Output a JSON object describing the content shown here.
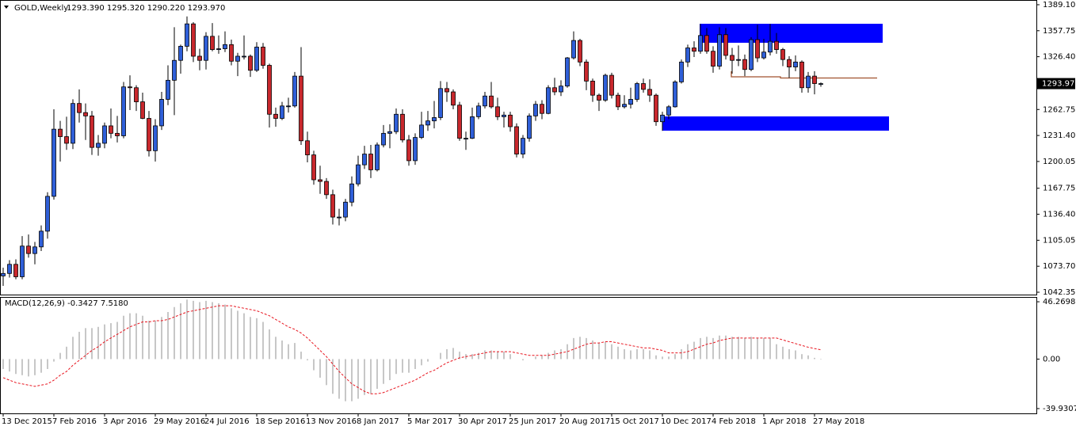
{
  "chart_data": [
    {
      "type": "candlestick",
      "title": "GOLD,Weekly",
      "ohlc_text": "1293.390 1295.320 1290.220 1293.970",
      "categories": [
        "13 Dec 2015",
        null,
        null,
        null,
        null,
        null,
        null,
        null,
        "7 Feb 2016",
        null,
        null,
        null,
        null,
        null,
        null,
        null,
        "3 Apr 2016",
        null,
        null,
        null,
        null,
        null,
        null,
        null,
        "29 May 2016",
        null,
        null,
        null,
        null,
        null,
        null,
        null,
        "24 Jul 2016",
        null,
        null,
        null,
        null,
        null,
        null,
        null,
        "18 Sep 2016",
        null,
        null,
        null,
        null,
        null,
        null,
        null,
        "13 Nov 2016",
        null,
        null,
        null,
        null,
        null,
        null,
        null,
        "8 Jan 2017",
        null,
        null,
        null,
        null,
        null,
        null,
        null,
        "5 Mar 2017",
        null,
        null,
        null,
        null,
        null,
        null,
        null,
        "30 Apr 2017",
        null,
        null,
        null,
        null,
        null,
        null,
        null,
        "25 Jun 2017",
        null,
        null,
        null,
        null,
        null,
        null,
        null,
        "20 Aug 2017",
        null,
        null,
        null,
        null,
        null,
        null,
        null,
        "15 Oct 2017",
        null,
        null,
        null,
        null,
        null,
        null,
        null,
        "10 Dec 2017",
        null,
        null,
        null,
        null,
        null,
        null,
        null,
        "4 Feb 2018",
        null,
        null,
        null,
        null,
        null,
        null,
        null,
        "1 Apr 2018",
        null,
        null,
        null,
        null,
        null,
        null,
        null,
        "27 May 2018",
        null
      ],
      "ohlc": [
        [
          1062,
          1072,
          1050,
          1065
        ],
        [
          1065,
          1081,
          1060,
          1076
        ],
        [
          1076,
          1082,
          1058,
          1061
        ],
        [
          1061,
          1110,
          1058,
          1098
        ],
        [
          1098,
          1112,
          1084,
          1089
        ],
        [
          1089,
          1103,
          1076,
          1097
        ],
        [
          1097,
          1123,
          1092,
          1116
        ],
        [
          1116,
          1163,
          1107,
          1158
        ],
        [
          1158,
          1263,
          1154,
          1239
        ],
        [
          1239,
          1249,
          1200,
          1230
        ],
        [
          1230,
          1254,
          1214,
          1222
        ],
        [
          1222,
          1275,
          1215,
          1270
        ],
        [
          1270,
          1287,
          1247,
          1259
        ],
        [
          1259,
          1270,
          1226,
          1255
        ],
        [
          1255,
          1261,
          1208,
          1217
        ],
        [
          1217,
          1232,
          1207,
          1222
        ],
        [
          1222,
          1247,
          1216,
          1243
        ],
        [
          1243,
          1264,
          1228,
          1234
        ],
        [
          1234,
          1255,
          1223,
          1231
        ],
        [
          1231,
          1296,
          1228,
          1290
        ],
        [
          1290,
          1304,
          1262,
          1289
        ],
        [
          1289,
          1292,
          1261,
          1272
        ],
        [
          1272,
          1283,
          1251,
          1252
        ],
        [
          1252,
          1261,
          1206,
          1213
        ],
        [
          1213,
          1251,
          1200,
          1243
        ],
        [
          1243,
          1284,
          1238,
          1275
        ],
        [
          1275,
          1316,
          1268,
          1298
        ],
        [
          1298,
          1362,
          1256,
          1322
        ],
        [
          1322,
          1341,
          1306,
          1339
        ],
        [
          1339,
          1375,
          1333,
          1366
        ],
        [
          1366,
          1368,
          1320,
          1327
        ],
        [
          1327,
          1336,
          1310,
          1322
        ],
        [
          1322,
          1356,
          1311,
          1351
        ],
        [
          1351,
          1367,
          1333,
          1335
        ],
        [
          1335,
          1352,
          1330,
          1336
        ],
        [
          1336,
          1357,
          1332,
          1341
        ],
        [
          1341,
          1347,
          1316,
          1321
        ],
        [
          1321,
          1331,
          1303,
          1327
        ],
        [
          1327,
          1352,
          1323,
          1327
        ],
        [
          1327,
          1329,
          1302,
          1310
        ],
        [
          1310,
          1344,
          1308,
          1338
        ],
        [
          1338,
          1343,
          1312,
          1316
        ],
        [
          1316,
          1318,
          1241,
          1257
        ],
        [
          1257,
          1265,
          1242,
          1252
        ],
        [
          1252,
          1272,
          1250,
          1267
        ],
        [
          1267,
          1277,
          1259,
          1267
        ],
        [
          1267,
          1308,
          1265,
          1303
        ],
        [
          1303,
          1338,
          1220,
          1225
        ],
        [
          1225,
          1236,
          1199,
          1208
        ],
        [
          1208,
          1213,
          1172,
          1178
        ],
        [
          1178,
          1195,
          1161,
          1176
        ],
        [
          1176,
          1180,
          1155,
          1160
        ],
        [
          1160,
          1166,
          1124,
          1133
        ],
        [
          1133,
          1143,
          1123,
          1133
        ],
        [
          1133,
          1155,
          1128,
          1151
        ],
        [
          1151,
          1182,
          1146,
          1173
        ],
        [
          1173,
          1207,
          1170,
          1196
        ],
        [
          1196,
          1219,
          1191,
          1209
        ],
        [
          1209,
          1220,
          1180,
          1190
        ],
        [
          1190,
          1223,
          1188,
          1220
        ],
        [
          1220,
          1244,
          1217,
          1234
        ],
        [
          1234,
          1245,
          1216,
          1236
        ],
        [
          1236,
          1264,
          1233,
          1257
        ],
        [
          1257,
          1263,
          1223,
          1226
        ],
        [
          1226,
          1232,
          1195,
          1201
        ],
        [
          1201,
          1234,
          1196,
          1229
        ],
        [
          1229,
          1260,
          1227,
          1244
        ],
        [
          1244,
          1261,
          1237,
          1249
        ],
        [
          1249,
          1273,
          1240,
          1253
        ],
        [
          1253,
          1297,
          1250,
          1288
        ],
        [
          1288,
          1296,
          1272,
          1284
        ],
        [
          1284,
          1287,
          1263,
          1268
        ],
        [
          1268,
          1272,
          1225,
          1228
        ],
        [
          1228,
          1236,
          1214,
          1228
        ],
        [
          1228,
          1265,
          1227,
          1254
        ],
        [
          1254,
          1271,
          1251,
          1267
        ],
        [
          1267,
          1284,
          1264,
          1279
        ],
        [
          1279,
          1296,
          1264,
          1266
        ],
        [
          1266,
          1277,
          1250,
          1254
        ],
        [
          1254,
          1260,
          1241,
          1256
        ],
        [
          1256,
          1260,
          1236,
          1242
        ],
        [
          1242,
          1246,
          1205,
          1209
        ],
        [
          1209,
          1232,
          1204,
          1228
        ],
        [
          1228,
          1258,
          1224,
          1255
        ],
        [
          1255,
          1273,
          1249,
          1269
        ],
        [
          1269,
          1274,
          1251,
          1258
        ],
        [
          1258,
          1292,
          1257,
          1289
        ],
        [
          1289,
          1301,
          1280,
          1284
        ],
        [
          1284,
          1298,
          1279,
          1291
        ],
        [
          1291,
          1326,
          1289,
          1325
        ],
        [
          1325,
          1357,
          1323,
          1346
        ],
        [
          1346,
          1348,
          1315,
          1320
        ],
        [
          1320,
          1323,
          1286,
          1297
        ],
        [
          1297,
          1300,
          1272,
          1280
        ],
        [
          1280,
          1282,
          1261,
          1274
        ],
        [
          1274,
          1306,
          1272,
          1304
        ],
        [
          1304,
          1307,
          1276,
          1280
        ],
        [
          1280,
          1283,
          1262,
          1266
        ],
        [
          1266,
          1280,
          1264,
          1269
        ],
        [
          1269,
          1289,
          1264,
          1275
        ],
        [
          1275,
          1296,
          1272,
          1294
        ],
        [
          1294,
          1300,
          1283,
          1287
        ],
        [
          1287,
          1299,
          1272,
          1280
        ],
        [
          1280,
          1282,
          1243,
          1248
        ],
        [
          1248,
          1260,
          1237,
          1256
        ],
        [
          1256,
          1268,
          1251,
          1266
        ],
        [
          1266,
          1298,
          1265,
          1296
        ],
        [
          1296,
          1323,
          1294,
          1320
        ],
        [
          1320,
          1341,
          1314,
          1337
        ],
        [
          1337,
          1345,
          1326,
          1333
        ],
        [
          1333,
          1366,
          1330,
          1352
        ],
        [
          1352,
          1361,
          1330,
          1333
        ],
        [
          1333,
          1339,
          1307,
          1315
        ],
        [
          1315,
          1362,
          1311,
          1353
        ],
        [
          1353,
          1361,
          1323,
          1328
        ],
        [
          1328,
          1337,
          1306,
          1322
        ],
        [
          1322,
          1340,
          1315,
          1323
        ],
        [
          1323,
          1329,
          1303,
          1311
        ],
        [
          1311,
          1350,
          1309,
          1347
        ],
        [
          1347,
          1365,
          1320,
          1325
        ],
        [
          1325,
          1348,
          1323,
          1332
        ],
        [
          1332,
          1366,
          1328,
          1345
        ],
        [
          1345,
          1355,
          1330,
          1335
        ],
        [
          1335,
          1337,
          1315,
          1323
        ],
        [
          1323,
          1327,
          1301,
          1314
        ],
        [
          1314,
          1328,
          1309,
          1320
        ],
        [
          1320,
          1322,
          1283,
          1289
        ],
        [
          1289,
          1308,
          1283,
          1303
        ],
        [
          1303,
          1309,
          1281,
          1294
        ],
        [
          1293.39,
          1295.32,
          1290.22,
          1293.97
        ]
      ],
      "up_color": "#2f5fd8",
      "down_color": "#c8282d",
      "ylim": [
        1039.5,
        1394.8
      ],
      "yticks": [
        {
          "value": 1389.1,
          "label": "1389.100"
        },
        {
          "value": 1357.75,
          "label": "1357.750"
        },
        {
          "value": 1326.4,
          "label": "1326.400"
        },
        {
          "value": 1262.75,
          "label": "1262.750"
        },
        {
          "value": 1231.4,
          "label": "1231.400"
        },
        {
          "value": 1200.05,
          "label": "1200.050"
        },
        {
          "value": 1167.75,
          "label": "1167.750"
        },
        {
          "value": 1136.4,
          "label": "1136.400"
        },
        {
          "value": 1105.05,
          "label": "1105.050"
        },
        {
          "value": 1073.7,
          "label": "1073.700"
        },
        {
          "value": 1042.35,
          "label": "1042.350"
        }
      ],
      "current_price": {
        "value": 1293.97,
        "label": "1293.970"
      }
    },
    {
      "type": "macd",
      "title": "MACD(12,26,9) -0.3427 7.5180",
      "histogram": [
        -8,
        -10,
        -12,
        -13,
        -14,
        -13,
        -11,
        -8,
        -2,
        5,
        10,
        18,
        22,
        25,
        25,
        26,
        28,
        29,
        30,
        35,
        37,
        37,
        35,
        31,
        31,
        34,
        38,
        42,
        45,
        48,
        47,
        46,
        47,
        46,
        45,
        44,
        41,
        39,
        37,
        34,
        33,
        30,
        24,
        18,
        15,
        12,
        13,
        6,
        -1,
        -9,
        -15,
        -21,
        -28,
        -32,
        -34,
        -34,
        -32,
        -29,
        -28,
        -24,
        -20,
        -17,
        -12,
        -11,
        -11,
        -8,
        -5,
        -2,
        0,
        5,
        8,
        9,
        6,
        4,
        4,
        5,
        7,
        7,
        6,
        6,
        4,
        0,
        -1,
        0,
        2,
        3,
        5,
        7,
        8,
        12,
        17,
        18,
        17,
        15,
        13,
        14,
        12,
        10,
        8,
        7,
        8,
        8,
        7,
        3,
        2,
        2,
        4,
        8,
        12,
        14,
        17,
        18,
        17,
        19,
        19,
        18,
        18,
        17,
        18,
        17,
        17,
        17,
        12,
        10,
        8,
        7,
        4,
        3,
        1,
        -0.3427
      ],
      "signal": [
        -15,
        -17,
        -19,
        -20,
        -21,
        -22,
        -21,
        -20,
        -17,
        -13,
        -10,
        -5,
        -1,
        3,
        7,
        10,
        14,
        17,
        20,
        23,
        26,
        28,
        30,
        30,
        31,
        31,
        32,
        34,
        36,
        38,
        39,
        40,
        41,
        42,
        43,
        43,
        43,
        42,
        41,
        40,
        39,
        37,
        35,
        32,
        29,
        26,
        24,
        21,
        17,
        12,
        7,
        2,
        -4,
        -10,
        -15,
        -20,
        -23,
        -26,
        -28,
        -28,
        -27,
        -25,
        -23,
        -21,
        -19,
        -17,
        -14,
        -11,
        -9,
        -6,
        -3,
        -1,
        1,
        2,
        3,
        4,
        5,
        6,
        6,
        6,
        6,
        5,
        4,
        3,
        3,
        3,
        3,
        4,
        5,
        6,
        8,
        10,
        12,
        13,
        13,
        14,
        14,
        13,
        12,
        11,
        10,
        9,
        9,
        8,
        7,
        5,
        5,
        5,
        6,
        8,
        10,
        12,
        13,
        15,
        16,
        17,
        17,
        17,
        17,
        17,
        17,
        17,
        17,
        15.5,
        14,
        12.5,
        11,
        9.6,
        8.5,
        7.518
      ],
      "histogram_color": "#b4b4b4",
      "signal_color": "#e8141e",
      "ylim": [
        -43.8,
        49.5
      ],
      "yticks": [
        46.2698,
        {
          "value": 0,
          "label": "0.00"
        },
        -39.9307
      ]
    }
  ]
}
